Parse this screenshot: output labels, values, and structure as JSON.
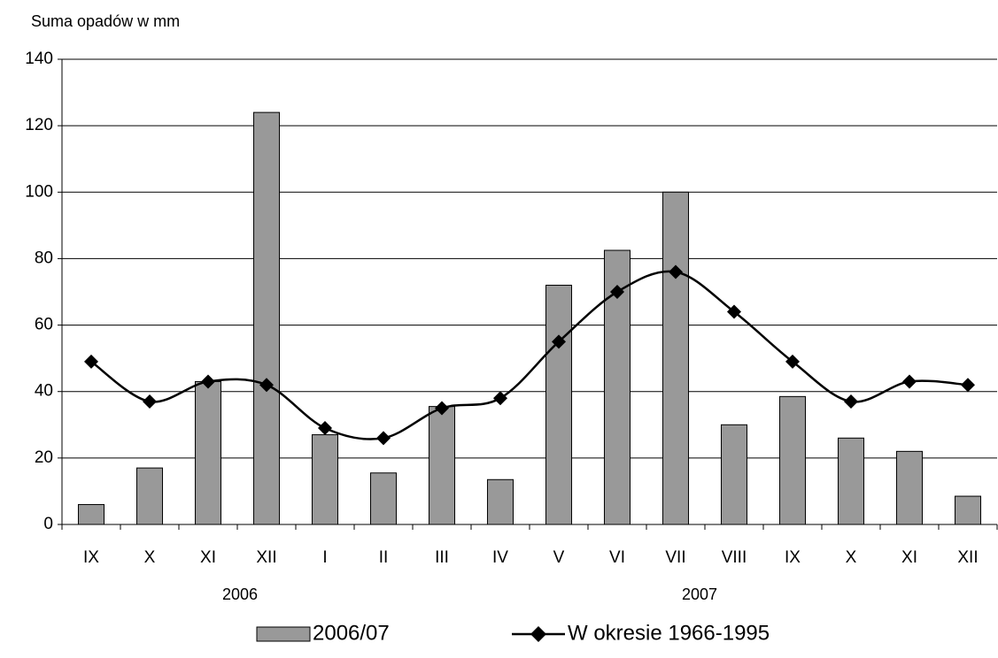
{
  "chart_data": {
    "type": "bar_line",
    "y_axis_label": "Suma opadów w mm",
    "categories": [
      "IX",
      "X",
      "XI",
      "XII",
      "I",
      "II",
      "III",
      "IV",
      "V",
      "VI",
      "VII",
      "VIII",
      "IX",
      "X",
      "XI",
      "XII"
    ],
    "group_labels": [
      "2006",
      "2007"
    ],
    "series": [
      {
        "name": "2006/07",
        "type": "bar",
        "color": "#999999",
        "values": [
          6,
          17,
          43,
          124,
          27,
          15.5,
          35.5,
          13.5,
          72,
          82.5,
          100,
          30,
          38.5,
          26,
          22,
          8.5
        ]
      },
      {
        "name": "W okresie 1966-1995",
        "type": "line",
        "color": "#000000",
        "values": [
          49,
          37,
          43,
          42,
          29,
          26,
          35,
          38,
          55,
          70,
          76,
          64,
          49,
          37,
          43,
          42
        ]
      }
    ],
    "ylim": [
      0,
      140
    ],
    "yticks": [
      0,
      20,
      40,
      60,
      80,
      100,
      120,
      140
    ],
    "grid": true
  }
}
